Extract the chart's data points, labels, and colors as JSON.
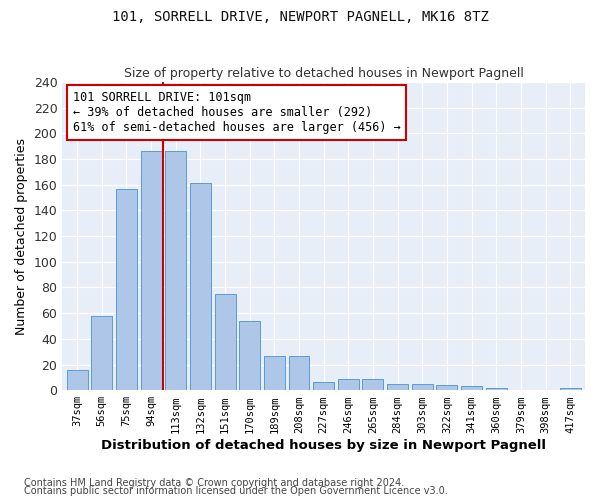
{
  "title1": "101, SORRELL DRIVE, NEWPORT PAGNELL, MK16 8TZ",
  "title2": "Size of property relative to detached houses in Newport Pagnell",
  "xlabel": "Distribution of detached houses by size in Newport Pagnell",
  "ylabel": "Number of detached properties",
  "bin_labels": [
    "37sqm",
    "56sqm",
    "75sqm",
    "94sqm",
    "113sqm",
    "132sqm",
    "151sqm",
    "170sqm",
    "189sqm",
    "208sqm",
    "227sqm",
    "246sqm",
    "265sqm",
    "284sqm",
    "303sqm",
    "322sqm",
    "341sqm",
    "360sqm",
    "379sqm",
    "398sqm",
    "417sqm"
  ],
  "bar_values": [
    16,
    58,
    157,
    186,
    186,
    161,
    75,
    54,
    27,
    27,
    6,
    9,
    9,
    5,
    5,
    4,
    3,
    2,
    0,
    0,
    2
  ],
  "bar_color": "#aec6e8",
  "bar_edge_color": "#5b9bd5",
  "vline_x_index": 3,
  "vline_color": "#cc0000",
  "annotation_text": "101 SORRELL DRIVE: 101sqm\n← 39% of detached houses are smaller (292)\n61% of semi-detached houses are larger (456) →",
  "annotation_box_color": "#ffffff",
  "annotation_box_edge": "#cc0000",
  "plot_bg_color": "#e8eef8",
  "fig_bg_color": "#ffffff",
  "grid_color": "#ffffff",
  "footer1": "Contains HM Land Registry data © Crown copyright and database right 2024.",
  "footer2": "Contains public sector information licensed under the Open Government Licence v3.0.",
  "ylim": [
    0,
    240
  ],
  "yticks": [
    0,
    20,
    40,
    60,
    80,
    100,
    120,
    140,
    160,
    180,
    200,
    220,
    240
  ]
}
